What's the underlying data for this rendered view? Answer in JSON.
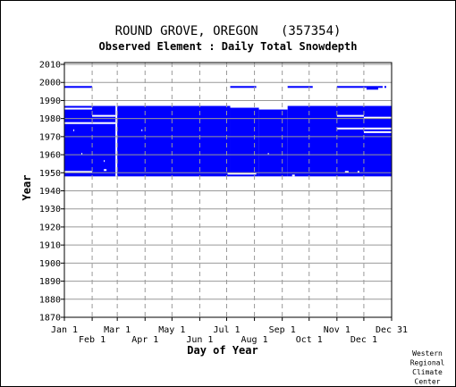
{
  "chart_data": {
    "type": "heatmap",
    "title": "ROUND GROVE, OREGON   (357354)",
    "subtitle": "Observed Element : Daily Total Snowdepth",
    "xlabel": "Day of Year",
    "ylabel": "Year",
    "xlim": [
      1,
      366
    ],
    "ylim": [
      1870,
      2011
    ],
    "grid": true,
    "x_ticks_row1": [
      {
        "label": "Jan 1",
        "day": 1
      },
      {
        "label": "Mar 1",
        "day": 60
      },
      {
        "label": "May 1",
        "day": 121
      },
      {
        "label": "Jul 1",
        "day": 182
      },
      {
        "label": "Sep 1",
        "day": 244
      },
      {
        "label": "Nov 1",
        "day": 305
      },
      {
        "label": "Dec 31",
        "day": 366
      }
    ],
    "x_ticks_row2": [
      {
        "label": "Feb 1",
        "day": 32
      },
      {
        "label": "Apr 1",
        "day": 91
      },
      {
        "label": "Jun 1",
        "day": 152
      },
      {
        "label": "Aug 1",
        "day": 213
      },
      {
        "label": "Oct 1",
        "day": 274
      },
      {
        "label": "Dec 1",
        "day": 335
      }
    ],
    "y_ticks": [
      1870,
      1880,
      1890,
      1900,
      1910,
      1920,
      1930,
      1940,
      1950,
      1960,
      1970,
      1980,
      1990,
      2000,
      2010
    ],
    "vertical_gridlines_days": [
      32,
      60,
      91,
      121,
      152,
      182,
      213,
      244,
      274,
      305,
      335
    ],
    "observation_color": "#0000ff",
    "grid_color": "#999999",
    "observed_blocks": [
      {
        "day_start": 1,
        "day_end": 186,
        "year_start": 1948,
        "year_end": 1987
      },
      {
        "day_start": 186,
        "day_end": 218,
        "year_start": 1948,
        "year_end": 1986
      },
      {
        "day_start": 218,
        "day_end": 250,
        "year_start": 1948,
        "year_end": 1985
      },
      {
        "day_start": 250,
        "day_end": 366,
        "year_start": 1948,
        "year_end": 1987
      },
      {
        "day_start": 1,
        "day_end": 32,
        "year_start": 1997,
        "year_end": 1998
      },
      {
        "day_start": 186,
        "day_end": 215,
        "year_start": 1997,
        "year_end": 1998
      },
      {
        "day_start": 250,
        "day_end": 278,
        "year_start": 1997,
        "year_end": 1998
      },
      {
        "day_start": 305,
        "day_end": 338,
        "year_start": 1997,
        "year_end": 1998
      },
      {
        "day_start": 338,
        "day_end": 351,
        "year_start": 1996,
        "year_end": 1998
      },
      {
        "day_start": 351,
        "day_end": 356,
        "year_start": 1997,
        "year_end": 1998
      },
      {
        "day_start": 358,
        "day_end": 360,
        "year_start": 1997,
        "year_end": 1998
      }
    ],
    "missing_gaps": [
      {
        "day_start": 1,
        "day_end": 32,
        "year_start": 1985,
        "year_end": 1986
      },
      {
        "day_start": 1,
        "day_end": 32,
        "year_start": 1977,
        "year_end": 1978
      },
      {
        "day_start": 32,
        "day_end": 58,
        "year_start": 1981,
        "year_end": 1982
      },
      {
        "day_start": 32,
        "day_end": 58,
        "year_start": 1977,
        "year_end": 1978
      },
      {
        "day_start": 58,
        "day_end": 60,
        "year_start": 1948,
        "year_end": 1987
      },
      {
        "day_start": 1,
        "day_end": 32,
        "year_start": 1950,
        "year_end": 1951
      },
      {
        "day_start": 183,
        "day_end": 215,
        "year_start": 1949,
        "year_end": 1950
      },
      {
        "day_start": 305,
        "day_end": 335,
        "year_start": 1981,
        "year_end": 1982
      },
      {
        "day_start": 335,
        "day_end": 366,
        "year_start": 1980,
        "year_end": 1981
      },
      {
        "day_start": 305,
        "day_end": 335,
        "year_start": 1974,
        "year_end": 1975
      },
      {
        "day_start": 335,
        "day_end": 366,
        "year_start": 1974,
        "year_end": 1975
      },
      {
        "day_start": 335,
        "day_end": 366,
        "year_start": 1972,
        "year_end": 1973
      },
      {
        "day_start": 11,
        "day_end": 12,
        "year_start": 1973,
        "year_end": 1974
      },
      {
        "day_start": 87,
        "day_end": 88,
        "year_start": 1973,
        "year_end": 1974
      },
      {
        "day_start": 20,
        "day_end": 21,
        "year_start": 1960,
        "year_end": 1961
      },
      {
        "day_start": 45,
        "day_end": 46,
        "year_start": 1956,
        "year_end": 1957
      },
      {
        "day_start": 228,
        "day_end": 229,
        "year_start": 1960,
        "year_end": 1961
      },
      {
        "day_start": 45,
        "day_end": 48,
        "year_start": 1951,
        "year_end": 1952
      },
      {
        "day_start": 255,
        "day_end": 258,
        "year_start": 1948,
        "year_end": 1949
      },
      {
        "day_start": 314,
        "day_end": 318,
        "year_start": 1950,
        "year_end": 1951
      },
      {
        "day_start": 328,
        "day_end": 330,
        "year_start": 1950,
        "year_end": 1951
      }
    ]
  },
  "credit_lines": [
    "Western",
    "Regional",
    "Climate",
    "Center"
  ]
}
